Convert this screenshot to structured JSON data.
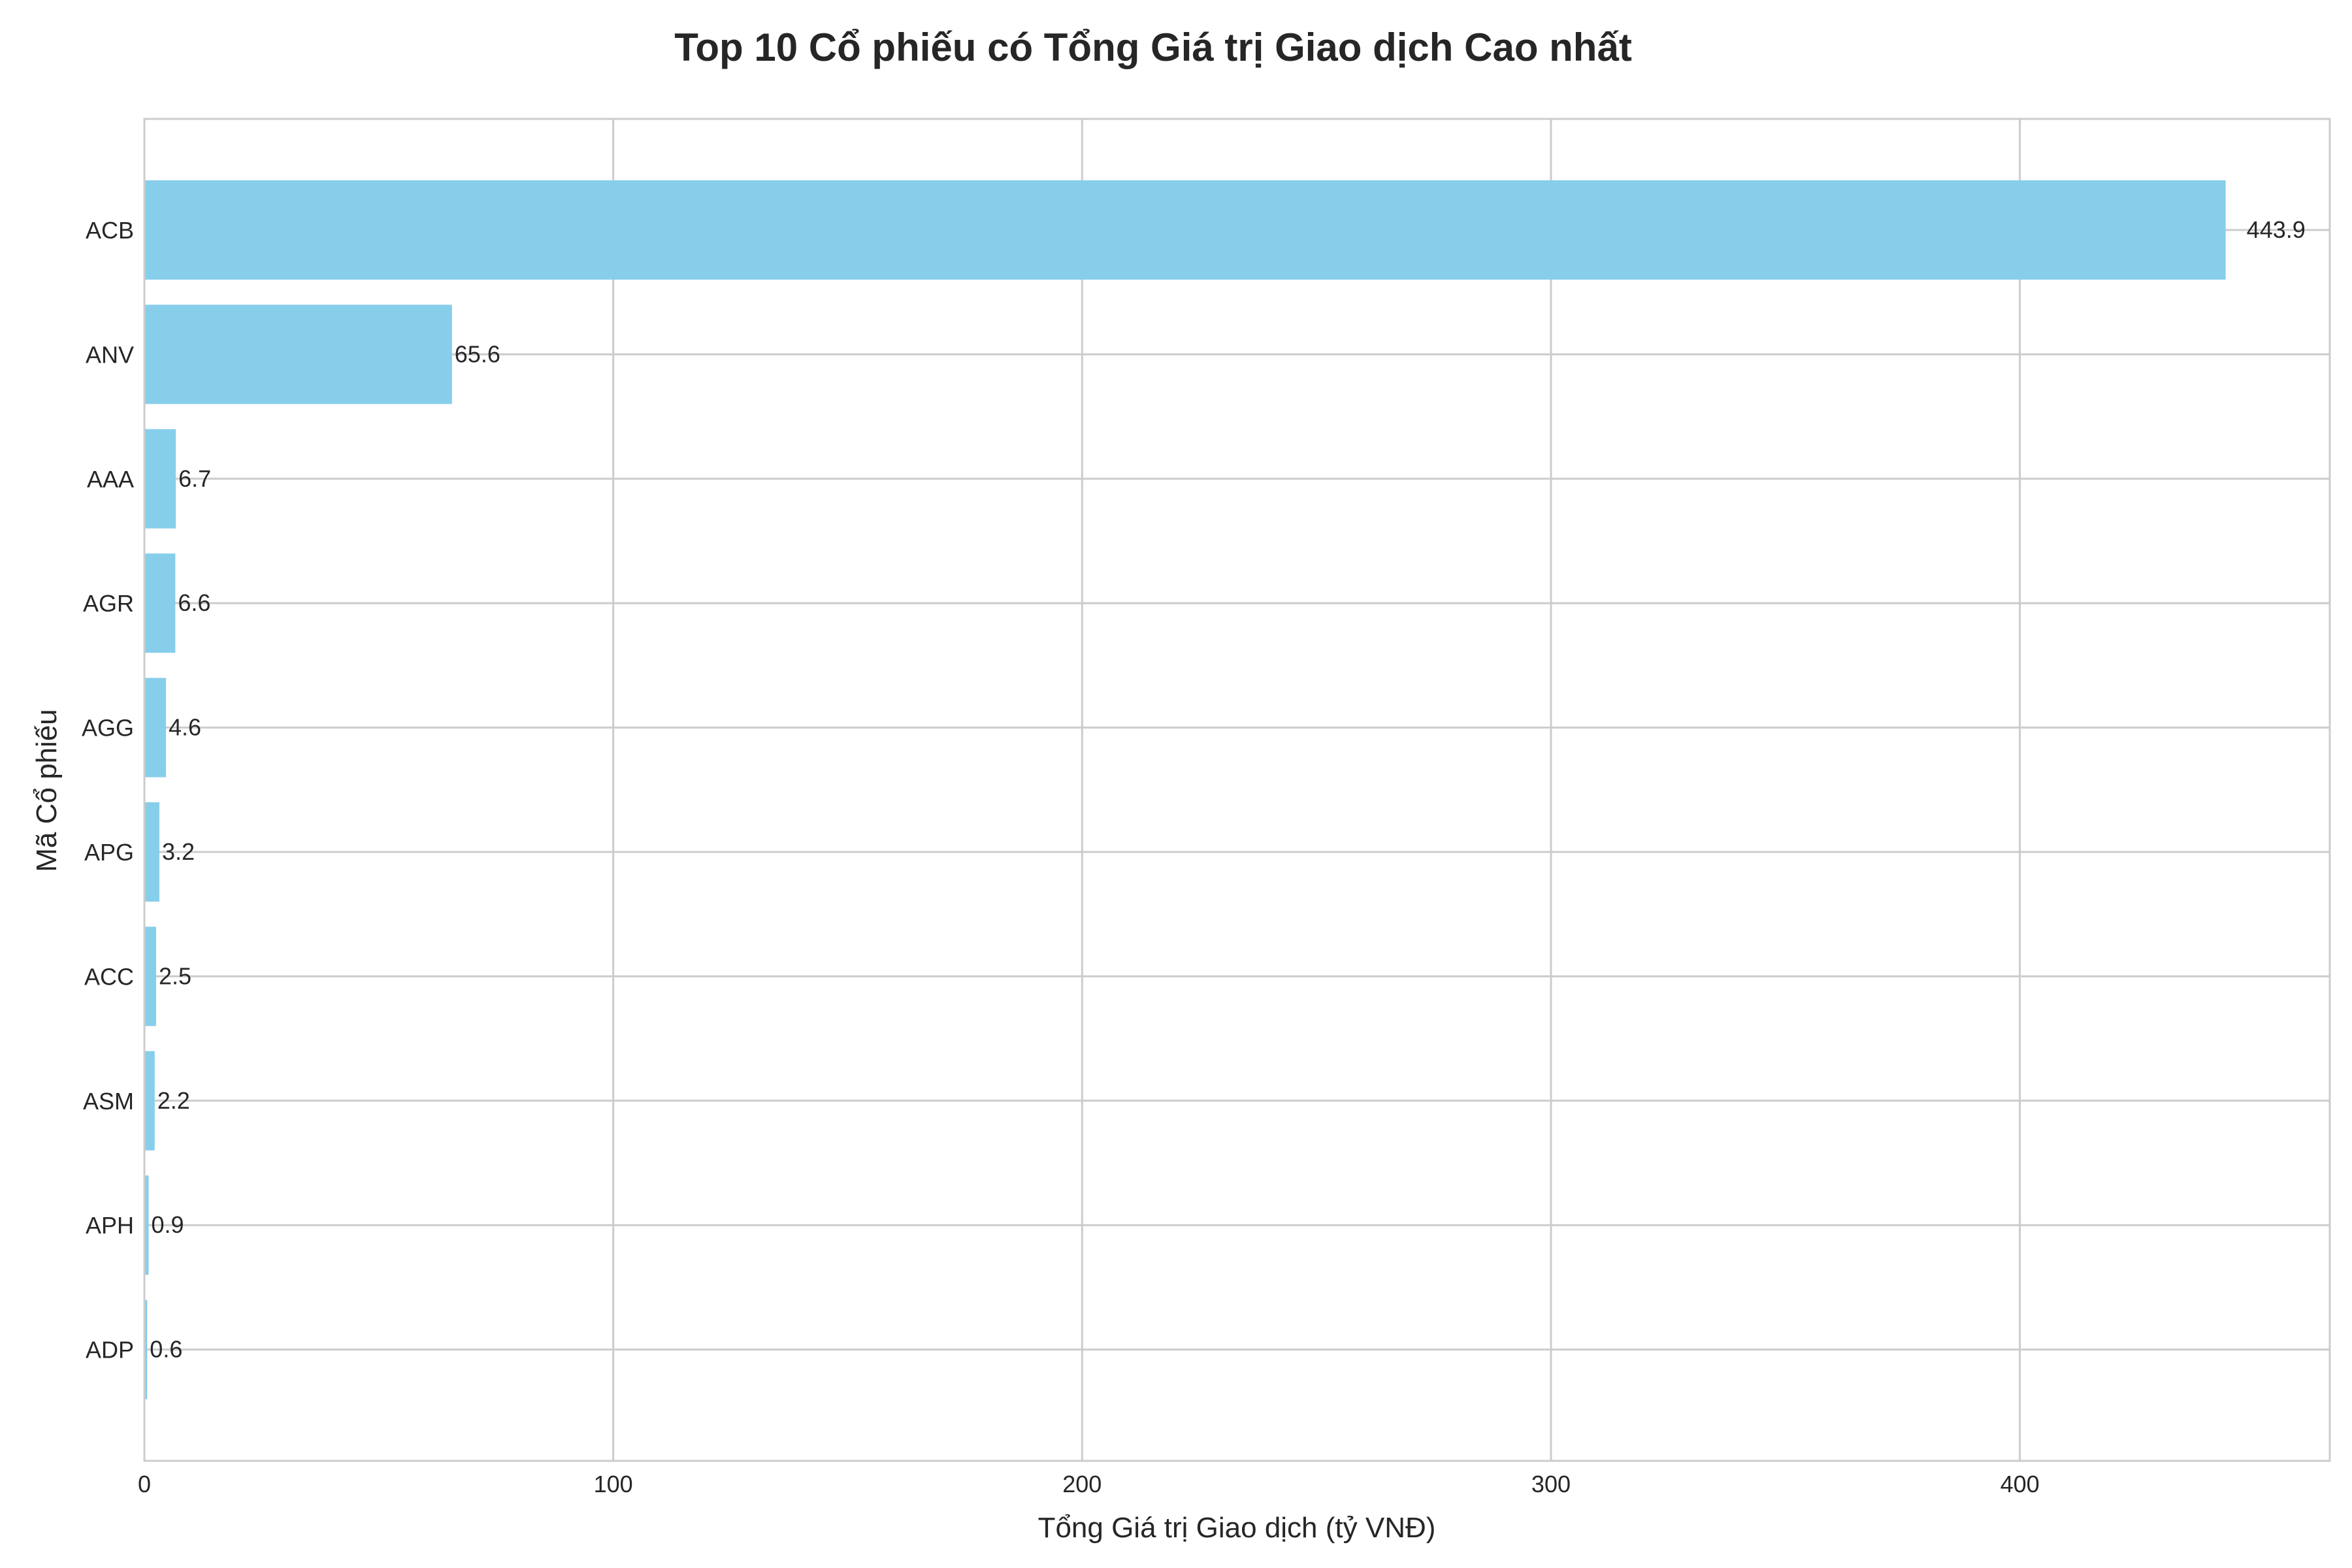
{
  "chart_data": {
    "type": "bar",
    "orientation": "horizontal",
    "title": "Top 10 Cổ phiếu có Tổng Giá trị Giao dịch Cao nhất",
    "xlabel": "Tổng Giá trị Giao dịch (tỷ VNĐ)",
    "ylabel": "Mã Cổ phiếu",
    "categories": [
      "ACB",
      "ANV",
      "AAA",
      "AGR",
      "AGG",
      "APG",
      "ACC",
      "ASM",
      "APH",
      "ADP"
    ],
    "values": [
      443.9,
      65.6,
      6.7,
      6.6,
      4.6,
      3.2,
      2.5,
      2.2,
      0.9,
      0.6
    ],
    "data_labels": [
      "443.9",
      "65.6",
      "6.7",
      "6.6",
      "4.6",
      "3.2",
      "2.5",
      "2.2",
      "0.9",
      "0.6"
    ],
    "xlim": [
      0,
      466.1
    ],
    "xticks": [
      0,
      100,
      200,
      300,
      400
    ],
    "grid": true,
    "bar_color": "#87ceeb",
    "grid_color": "#cccccc",
    "text_color": "#262626"
  }
}
